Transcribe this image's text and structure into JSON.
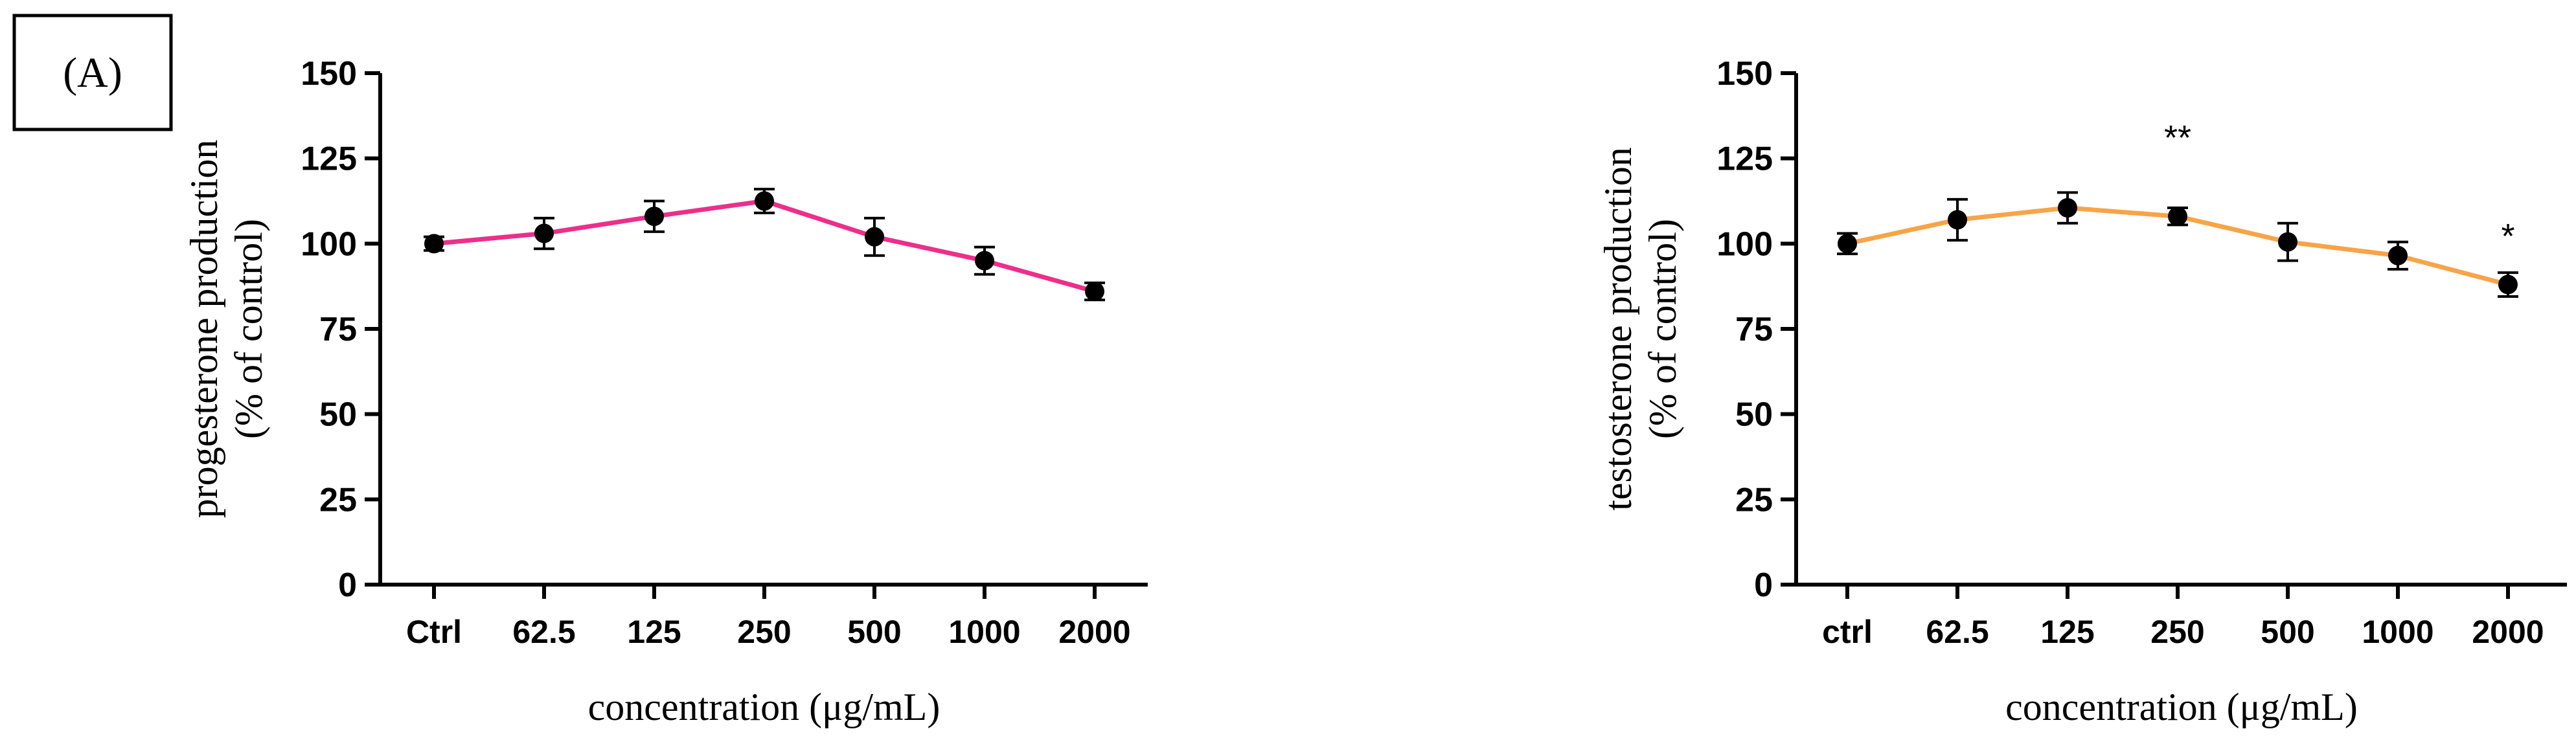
{
  "panel_label": "(A)",
  "chart_data": [
    {
      "type": "line",
      "categories": [
        "Ctrl",
        "62.5",
        "125",
        "250",
        "500",
        "1000",
        "2000"
      ],
      "series": [
        {
          "values": [
            100,
            103,
            108,
            112.5,
            102,
            95,
            86
          ],
          "errors": [
            2,
            4.5,
            4.5,
            3.5,
            5.5,
            4,
            2.5
          ],
          "color": "#ec2f8a"
        }
      ],
      "significance": [
        "",
        "",
        "",
        "",
        "",
        "",
        ""
      ],
      "ylabel_line1": "progesterone production",
      "ylabel_line2": "(% of control)",
      "xlabel": "concentration (μg/mL)",
      "ylim": [
        0,
        150
      ],
      "yticks": [
        0,
        25,
        50,
        75,
        100,
        125,
        150
      ],
      "grid": false
    },
    {
      "type": "line",
      "categories": [
        "ctrl",
        "62.5",
        "125",
        "250",
        "500",
        "1000",
        "2000"
      ],
      "series": [
        {
          "values": [
            100,
            107,
            110.5,
            108,
            100.5,
            96.5,
            88
          ],
          "errors": [
            3,
            6,
            4.5,
            2.5,
            5.5,
            4,
            3.5
          ],
          "color": "#f7a448"
        }
      ],
      "significance": [
        "",
        "",
        "",
        "**",
        "",
        "",
        "*"
      ],
      "ylabel_line1": "testosterone production",
      "ylabel_line2": "(% of control)",
      "xlabel": "concentration (μg/mL)",
      "ylim": [
        0,
        150
      ],
      "yticks": [
        0,
        25,
        50,
        75,
        100,
        125,
        150
      ],
      "grid": false
    }
  ]
}
